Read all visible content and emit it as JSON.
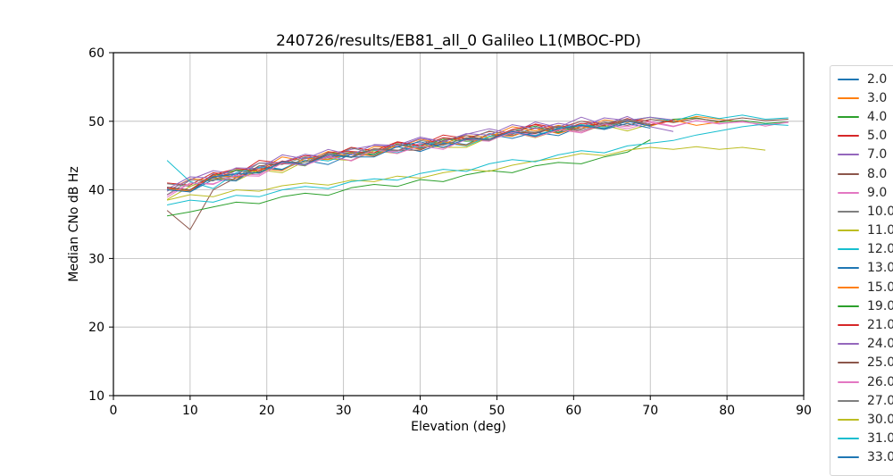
{
  "chart_data": {
    "type": "line",
    "title": "240726/results/EB81_all_0 Galileo L1(MBOC-PD)",
    "xlabel": "Elevation (deg)",
    "ylabel": "Median CNo dB Hz",
    "xlim": [
      0,
      90
    ],
    "ylim": [
      10,
      60
    ],
    "xticks": [
      0,
      10,
      20,
      30,
      40,
      50,
      60,
      70,
      80,
      90
    ],
    "yticks": [
      10,
      20,
      30,
      40,
      50,
      60
    ],
    "grid": true,
    "grid_color": "#b8b8b8",
    "legend_position": "right-outside-clipped",
    "x_start": 7,
    "x_step": 3,
    "series": [
      {
        "name": "2.0",
        "color": "#1f77b4",
        "values": [
          40.3,
          39.9,
          42.3,
          41.9,
          43.2,
          42.9,
          44.7,
          44.5,
          45.5,
          45.0,
          46.7,
          46.0,
          47.1,
          46.6,
          48.2,
          47.9,
          49.1,
          48.3,
          49.3,
          49.0,
          50.2,
          49.4,
          50.3
        ]
      },
      {
        "name": "3.0",
        "color": "#ff7f0e",
        "values": [
          39.8,
          41.6,
          41.4,
          42.9,
          42.8,
          44.8,
          44.2,
          45.6,
          44.8,
          46.3,
          46.2,
          47.4,
          46.7,
          47.9,
          47.7,
          49.2,
          48.6,
          49.4,
          48.9,
          50.2,
          49.8,
          50.6,
          49.9,
          50.7,
          50.3,
          49.9
        ]
      },
      {
        "name": "4.0",
        "color": "#2ca02c",
        "values": [
          40.1,
          39.8,
          42.0,
          42.9,
          42.6,
          44.0,
          43.5,
          45.3,
          45.4,
          45.2,
          46.7,
          46.2,
          47.4,
          47.1,
          47.2,
          48.6,
          49.3,
          48.4,
          49.5,
          49.2,
          50.2,
          49.3,
          50.3,
          50.5,
          49.9,
          50.1,
          49.7,
          49.9
        ]
      },
      {
        "name": "5.0",
        "color": "#d62728",
        "values": [
          41.0,
          40.7,
          42.5,
          42.1,
          44.3,
          43.9,
          45.0,
          44.7,
          46.2,
          45.7,
          47.0,
          46.5,
          48.0,
          47.5,
          48.5,
          48.1,
          49.6,
          49.0,
          50.0,
          49.6,
          50.3,
          50.0
        ]
      },
      {
        "name": "7.0",
        "color": "#9467bd",
        "values": [
          39.8,
          41.5,
          42.8,
          42.3,
          43.9,
          44.0,
          45.2,
          44.7,
          45.9,
          46.5,
          46.3,
          47.5,
          47.0,
          48.1,
          48.9,
          48.2,
          49.9,
          49.1,
          50.6,
          49.5,
          50.7,
          49.2,
          48.5
        ]
      },
      {
        "name": "8.0",
        "color": "#8c564b",
        "values": [
          37.0,
          34.2,
          40.0,
          41.8,
          42.6,
          43.9,
          43.6,
          44.9,
          44.8,
          45.9,
          45.7,
          46.8,
          46.5,
          47.6,
          47.4,
          48.5,
          48.2,
          49.2,
          48.9,
          49.9,
          49.4,
          50.3,
          49.8,
          50.4,
          50.0,
          50.5,
          50.1,
          50.3
        ]
      },
      {
        "name": "9.0",
        "color": "#e377c2",
        "values": [
          39.2,
          41.0,
          40.8,
          42.3,
          42.2,
          44.2,
          43.6,
          45.0,
          44.2,
          45.7,
          45.6,
          46.8,
          46.1,
          47.3,
          47.1,
          48.6,
          48.0,
          48.8,
          48.3,
          49.6,
          49.2,
          50.0,
          49.3,
          50.1,
          49.7,
          49.9,
          49.5,
          49.8
        ]
      },
      {
        "name": "10.0",
        "color": "#7f7f7f",
        "values": [
          40.9,
          40.5,
          42.0,
          41.8,
          43.9,
          43.7,
          44.8,
          44.5,
          46.1,
          45.4,
          46.6,
          46.1,
          47.6,
          47.3,
          48.6,
          47.9,
          49.0,
          48.8,
          50.0,
          49.2,
          50.2,
          49.6
        ]
      },
      {
        "name": "11.0",
        "color": "#bcbd22",
        "values": [
          38.6,
          40.5,
          41.7,
          41.3,
          42.9,
          42.5,
          44.2,
          44.5,
          44.3,
          45.7,
          45.3,
          46.5,
          46.2,
          46.2,
          47.7,
          48.4,
          47.6,
          48.7,
          48.5,
          49.4,
          48.6,
          49.6
        ]
      },
      {
        "name": "12.0",
        "color": "#17becf",
        "values": [
          44.3,
          41.2,
          40.2,
          42.5,
          43.3,
          43.0,
          44.6,
          44.2,
          45.3,
          45.8,
          45.4,
          46.6,
          46.9,
          46.4,
          47.8,
          48.3,
          47.9,
          49.0,
          49.5,
          49.0,
          50.1,
          50.6,
          50.0,
          51.0,
          50.4,
          50.9,
          50.3,
          50.5
        ]
      },
      {
        "name": "13.0",
        "color": "#1f77b4",
        "values": [
          40.2,
          39.7,
          41.5,
          41.3,
          43.5,
          43.0,
          44.3,
          43.7,
          45.2,
          45.0,
          46.3,
          45.6,
          46.8,
          46.5,
          48.1,
          47.5,
          48.4,
          47.9,
          49.3,
          48.8,
          49.7,
          49.0
        ]
      },
      {
        "name": "15.0",
        "color": "#ff7f0e",
        "values": [
          40.2,
          39.8,
          42.2,
          41.8,
          43.1,
          42.8,
          44.6,
          44.4,
          45.4,
          44.9,
          46.6,
          45.9,
          47.0,
          46.5,
          48.1,
          47.8,
          49.0,
          48.2,
          49.2,
          48.9,
          50.1,
          49.3,
          50.2,
          49.4,
          49.9
        ]
      },
      {
        "name": "19.0",
        "color": "#2ca02c",
        "values": [
          36.2,
          36.8,
          37.5,
          38.2,
          38.0,
          39.0,
          39.5,
          39.2,
          40.3,
          40.8,
          40.5,
          41.5,
          41.2,
          42.2,
          42.8,
          42.5,
          43.5,
          44.0,
          43.8,
          44.8,
          45.5,
          47.3
        ]
      },
      {
        "name": "21.0",
        "color": "#d62728",
        "values": [
          40.3,
          40.0,
          42.2,
          43.1,
          42.8,
          44.2,
          43.7,
          45.5,
          45.6,
          45.4,
          46.9,
          46.4,
          47.6,
          47.3,
          47.4,
          48.8,
          49.5,
          48.6,
          49.7,
          49.4,
          50.4,
          49.5,
          50.1
        ]
      },
      {
        "name": "24.0",
        "color": "#9467bd",
        "values": [
          40.1,
          41.9,
          41.7,
          43.2,
          43.1,
          45.1,
          44.5,
          45.9,
          45.1,
          46.6,
          46.5,
          47.7,
          47.0,
          48.2,
          48.0,
          49.5,
          48.9,
          49.7,
          49.2,
          50.5,
          50.1,
          50.6,
          50.2
        ]
      },
      {
        "name": "25.0",
        "color": "#8c564b",
        "values": [
          40.4,
          40.0,
          41.8,
          41.5,
          43.5,
          43.8,
          43.7,
          45.3,
          44.8,
          46.0,
          45.8,
          45.8,
          47.2,
          47.9,
          47.2,
          48.4,
          48.3,
          49.3,
          48.5,
          49.5,
          50.0,
          49.5
        ]
      },
      {
        "name": "26.0",
        "color": "#e377c2",
        "values": [
          38.9,
          41.0,
          40.9,
          42.1,
          42.0,
          43.9,
          43.6,
          44.8,
          44.3,
          45.9,
          45.3,
          46.4,
          45.9,
          47.4,
          47.2,
          48.4,
          47.7,
          48.7,
          48.5,
          49.6,
          48.9,
          49.8,
          49.2,
          50.1,
          49.6,
          50.0,
          49.3,
          49.9
        ]
      },
      {
        "name": "27.0",
        "color": "#7f7f7f",
        "values": [
          39.3,
          41.4,
          41.3,
          42.8,
          42.4,
          44.1,
          44.0,
          45.4,
          44.7,
          45.9,
          45.7,
          47.2,
          46.6,
          47.5,
          47.2,
          48.7,
          48.4,
          49.3,
          48.7,
          49.7,
          50.3,
          49.5
        ]
      },
      {
        "name": "30.0",
        "color": "#bcbd22",
        "values": [
          38.5,
          39.3,
          39.0,
          40.0,
          39.8,
          40.6,
          41.0,
          40.7,
          41.4,
          41.2,
          42.0,
          41.7,
          42.5,
          43.0,
          42.7,
          43.6,
          44.2,
          44.6,
          45.3,
          45.0,
          45.8,
          46.2,
          45.9,
          46.3,
          45.9,
          46.2,
          45.8
        ]
      },
      {
        "name": "31.0",
        "color": "#17becf",
        "values": [
          37.8,
          38.5,
          38.2,
          39.2,
          39.0,
          40.0,
          40.5,
          40.2,
          41.2,
          41.6,
          41.4,
          42.4,
          43.0,
          42.7,
          43.8,
          44.4,
          44.1,
          45.1,
          45.7,
          45.4,
          46.4,
          46.8,
          47.2,
          48.0,
          48.6,
          49.2,
          49.6,
          49.4
        ]
      },
      {
        "name": "33.0",
        "color": "#1f77b4",
        "values": [
          40.0,
          39.7,
          41.9,
          42.3,
          42.5,
          44.1,
          43.7,
          45.1,
          44.8,
          44.8,
          46.3,
          47.0,
          46.2,
          47.4,
          47.4,
          48.5,
          47.8,
          48.9,
          49.4,
          48.9,
          50.0,
          49.3
        ]
      }
    ]
  }
}
